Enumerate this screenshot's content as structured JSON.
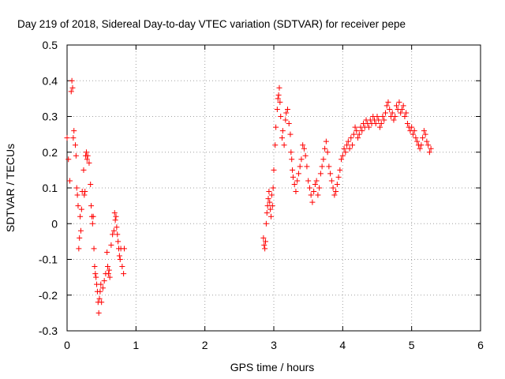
{
  "chart_data": {
    "type": "scatter",
    "title": "Day 219 of 2018, Sidereal Day-to-day VTEC variation (SDTVAR) for receiver pepe",
    "xlabel": "GPS time / hours",
    "ylabel": "SDTVAR / TECUs",
    "xlim": [
      0,
      6
    ],
    "ylim": [
      -0.3,
      0.5
    ],
    "xticks": [
      0,
      1,
      2,
      3,
      4,
      5,
      6
    ],
    "xtick_labels": [
      "0",
      "1",
      "2",
      "3",
      "4",
      "5",
      "6"
    ],
    "yticks": [
      -0.3,
      -0.2,
      -0.1,
      0,
      0.1,
      0.2,
      0.3,
      0.4,
      0.5
    ],
    "ytick_labels": [
      "-0.3",
      "-0.2",
      "-0.1",
      "0",
      "0.1",
      "0.2",
      "0.3",
      "0.4",
      "0.5"
    ],
    "grid": true,
    "marker": "+",
    "color": "#ff0000",
    "series": [
      {
        "name": "SDTVAR",
        "points": [
          [
            0.0,
            0.24
          ],
          [
            0.02,
            0.18
          ],
          [
            0.04,
            0.12
          ],
          [
            0.06,
            0.37
          ],
          [
            0.07,
            0.4
          ],
          [
            0.08,
            0.38
          ],
          [
            0.09,
            0.24
          ],
          [
            0.1,
            0.26
          ],
          [
            0.12,
            0.22
          ],
          [
            0.13,
            0.19
          ],
          [
            0.14,
            0.1
          ],
          [
            0.15,
            0.08
          ],
          [
            0.16,
            0.05
          ],
          [
            0.17,
            -0.07
          ],
          [
            0.18,
            -0.04
          ],
          [
            0.19,
            0.02
          ],
          [
            0.2,
            -0.02
          ],
          [
            0.21,
            0.04
          ],
          [
            0.22,
            0.09
          ],
          [
            0.24,
            0.15
          ],
          [
            0.25,
            0.08
          ],
          [
            0.26,
            0.09
          ],
          [
            0.27,
            0.19
          ],
          [
            0.28,
            0.2
          ],
          [
            0.29,
            0.18
          ],
          [
            0.3,
            0.19
          ],
          [
            0.32,
            0.17
          ],
          [
            0.34,
            0.11
          ],
          [
            0.35,
            0.05
          ],
          [
            0.36,
            0.02
          ],
          [
            0.37,
            0.0
          ],
          [
            0.38,
            0.02
          ],
          [
            0.39,
            -0.07
          ],
          [
            0.4,
            -0.12
          ],
          [
            0.41,
            -0.14
          ],
          [
            0.42,
            -0.15
          ],
          [
            0.43,
            -0.17
          ],
          [
            0.44,
            -0.19
          ],
          [
            0.45,
            -0.22
          ],
          [
            0.46,
            -0.25
          ],
          [
            0.47,
            -0.21
          ],
          [
            0.48,
            -0.19
          ],
          [
            0.49,
            -0.17
          ],
          [
            0.5,
            -0.22
          ],
          [
            0.52,
            -0.18
          ],
          [
            0.54,
            -0.16
          ],
          [
            0.56,
            -0.14
          ],
          [
            0.58,
            -0.08
          ],
          [
            0.59,
            -0.12
          ],
          [
            0.6,
            -0.14
          ],
          [
            0.61,
            -0.13
          ],
          [
            0.62,
            -0.15
          ],
          [
            0.64,
            -0.06
          ],
          [
            0.66,
            -0.03
          ],
          [
            0.68,
            -0.02
          ],
          [
            0.69,
            0.03
          ],
          [
            0.7,
            0.01
          ],
          [
            0.71,
            0.02
          ],
          [
            0.72,
            -0.01
          ],
          [
            0.73,
            -0.03
          ],
          [
            0.74,
            -0.05
          ],
          [
            0.75,
            -0.07
          ],
          [
            0.76,
            -0.09
          ],
          [
            0.77,
            -0.1
          ],
          [
            0.78,
            -0.07
          ],
          [
            0.8,
            -0.12
          ],
          [
            0.82,
            -0.14
          ],
          [
            0.83,
            -0.07
          ],
          [
            2.85,
            -0.04
          ],
          [
            2.86,
            -0.06
          ],
          [
            2.87,
            -0.07
          ],
          [
            2.88,
            -0.05
          ],
          [
            2.89,
            0.0
          ],
          [
            2.9,
            0.03
          ],
          [
            2.91,
            0.05
          ],
          [
            2.92,
            0.07
          ],
          [
            2.93,
            0.09
          ],
          [
            2.94,
            0.06
          ],
          [
            2.95,
            0.04
          ],
          [
            2.96,
            0.02
          ],
          [
            2.97,
            0.08
          ],
          [
            2.98,
            0.05
          ],
          [
            2.99,
            0.1
          ],
          [
            3.0,
            0.15
          ],
          [
            3.02,
            0.22
          ],
          [
            3.03,
            0.27
          ],
          [
            3.05,
            0.32
          ],
          [
            3.06,
            0.35
          ],
          [
            3.07,
            0.36
          ],
          [
            3.08,
            0.38
          ],
          [
            3.09,
            0.34
          ],
          [
            3.1,
            0.3
          ],
          [
            3.12,
            0.24
          ],
          [
            3.13,
            0.26
          ],
          [
            3.15,
            0.22
          ],
          [
            3.17,
            0.29
          ],
          [
            3.18,
            0.31
          ],
          [
            3.2,
            0.32
          ],
          [
            3.22,
            0.28
          ],
          [
            3.24,
            0.25
          ],
          [
            3.25,
            0.2
          ],
          [
            3.26,
            0.18
          ],
          [
            3.27,
            0.15
          ],
          [
            3.28,
            0.13
          ],
          [
            3.3,
            0.11
          ],
          [
            3.32,
            0.09
          ],
          [
            3.34,
            0.12
          ],
          [
            3.36,
            0.14
          ],
          [
            3.38,
            0.16
          ],
          [
            3.4,
            0.18
          ],
          [
            3.42,
            0.22
          ],
          [
            3.44,
            0.21
          ],
          [
            3.46,
            0.19
          ],
          [
            3.48,
            0.16
          ],
          [
            3.5,
            0.12
          ],
          [
            3.52,
            0.1
          ],
          [
            3.54,
            0.08
          ],
          [
            3.56,
            0.06
          ],
          [
            3.58,
            0.09
          ],
          [
            3.6,
            0.11
          ],
          [
            3.62,
            0.12
          ],
          [
            3.64,
            0.08
          ],
          [
            3.66,
            0.1
          ],
          [
            3.68,
            0.14
          ],
          [
            3.7,
            0.16
          ],
          [
            3.72,
            0.18
          ],
          [
            3.74,
            0.21
          ],
          [
            3.76,
            0.23
          ],
          [
            3.78,
            0.2
          ],
          [
            3.8,
            0.16
          ],
          [
            3.82,
            0.14
          ],
          [
            3.84,
            0.12
          ],
          [
            3.86,
            0.1
          ],
          [
            3.88,
            0.08
          ],
          [
            3.9,
            0.09
          ],
          [
            3.92,
            0.11
          ],
          [
            3.94,
            0.13
          ],
          [
            3.96,
            0.15
          ],
          [
            3.98,
            0.18
          ],
          [
            4.0,
            0.19
          ],
          [
            4.02,
            0.21
          ],
          [
            4.04,
            0.2
          ],
          [
            4.06,
            0.22
          ],
          [
            4.08,
            0.23
          ],
          [
            4.1,
            0.21
          ],
          [
            4.12,
            0.24
          ],
          [
            4.14,
            0.22
          ],
          [
            4.16,
            0.25
          ],
          [
            4.18,
            0.27
          ],
          [
            4.2,
            0.26
          ],
          [
            4.22,
            0.24
          ],
          [
            4.24,
            0.25
          ],
          [
            4.26,
            0.27
          ],
          [
            4.28,
            0.26
          ],
          [
            4.3,
            0.28
          ],
          [
            4.32,
            0.27
          ],
          [
            4.34,
            0.29
          ],
          [
            4.36,
            0.28
          ],
          [
            4.38,
            0.27
          ],
          [
            4.4,
            0.29
          ],
          [
            4.42,
            0.28
          ],
          [
            4.44,
            0.3
          ],
          [
            4.46,
            0.29
          ],
          [
            4.48,
            0.28
          ],
          [
            4.5,
            0.3
          ],
          [
            4.52,
            0.29
          ],
          [
            4.54,
            0.27
          ],
          [
            4.56,
            0.28
          ],
          [
            4.58,
            0.3
          ],
          [
            4.6,
            0.29
          ],
          [
            4.62,
            0.31
          ],
          [
            4.64,
            0.33
          ],
          [
            4.66,
            0.34
          ],
          [
            4.68,
            0.32
          ],
          [
            4.7,
            0.3
          ],
          [
            4.72,
            0.31
          ],
          [
            4.74,
            0.29
          ],
          [
            4.76,
            0.3
          ],
          [
            4.78,
            0.33
          ],
          [
            4.8,
            0.32
          ],
          [
            4.82,
            0.34
          ],
          [
            4.84,
            0.31
          ],
          [
            4.86,
            0.32
          ],
          [
            4.88,
            0.33
          ],
          [
            4.9,
            0.3
          ],
          [
            4.92,
            0.31
          ],
          [
            4.94,
            0.28
          ],
          [
            4.96,
            0.27
          ],
          [
            4.98,
            0.26
          ],
          [
            5.0,
            0.27
          ],
          [
            5.02,
            0.25
          ],
          [
            5.04,
            0.26
          ],
          [
            5.06,
            0.24
          ],
          [
            5.08,
            0.23
          ],
          [
            5.1,
            0.22
          ],
          [
            5.12,
            0.21
          ],
          [
            5.14,
            0.22
          ],
          [
            5.16,
            0.24
          ],
          [
            5.18,
            0.26
          ],
          [
            5.2,
            0.25
          ],
          [
            5.22,
            0.23
          ],
          [
            5.24,
            0.22
          ],
          [
            5.26,
            0.2
          ],
          [
            5.28,
            0.21
          ]
        ]
      }
    ]
  }
}
